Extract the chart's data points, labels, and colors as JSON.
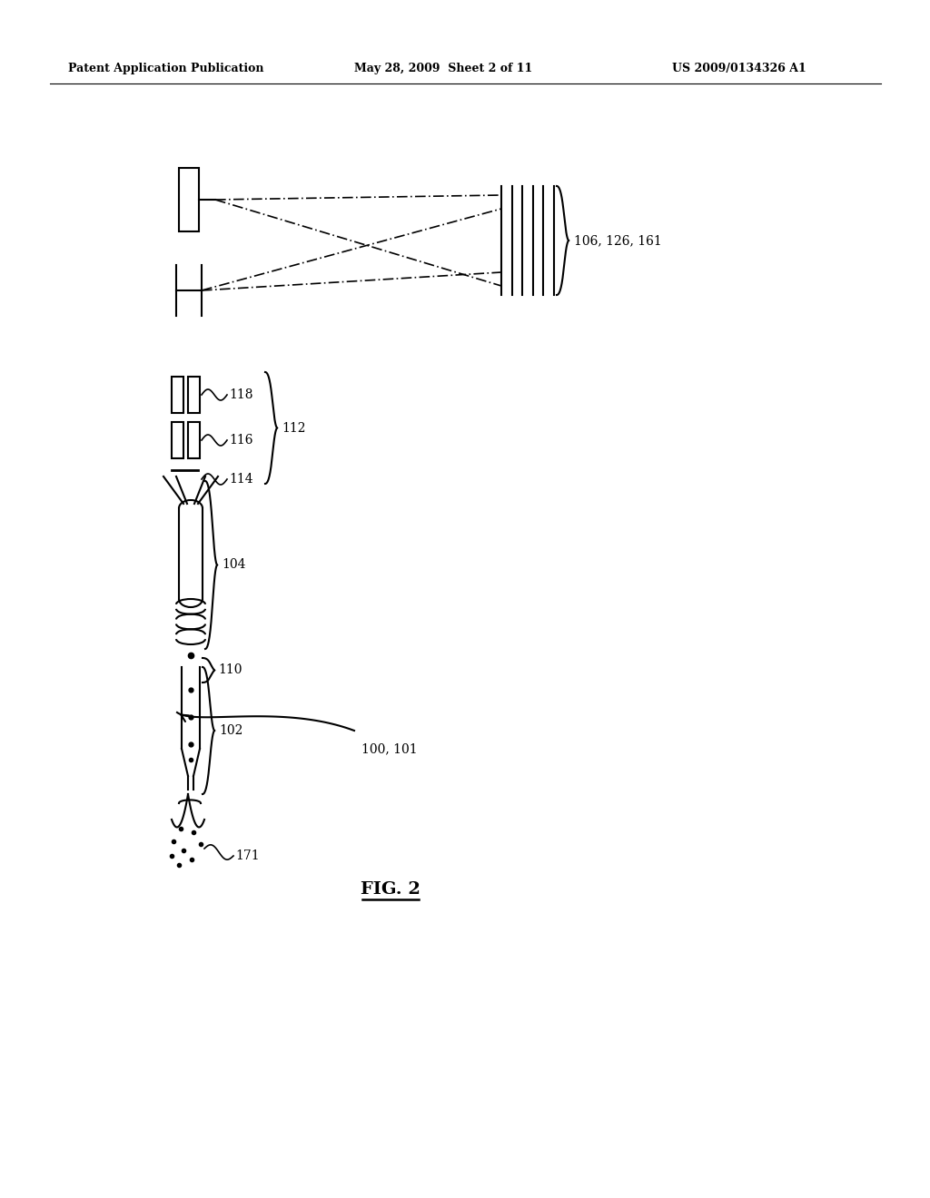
{
  "bg_color": "#ffffff",
  "header_left": "Patent Application Publication",
  "header_center": "May 28, 2009  Sheet 2 of 11",
  "header_right": "US 2009/0134326 A1",
  "fig_label": "FIG. 2",
  "label_106": "106, 126, 161",
  "label_112": "112",
  "label_118": "118",
  "label_116": "116",
  "label_114": "114",
  "label_104": "104",
  "label_110": "110",
  "label_102": "102",
  "label_100": "100, 101",
  "label_171": "171"
}
